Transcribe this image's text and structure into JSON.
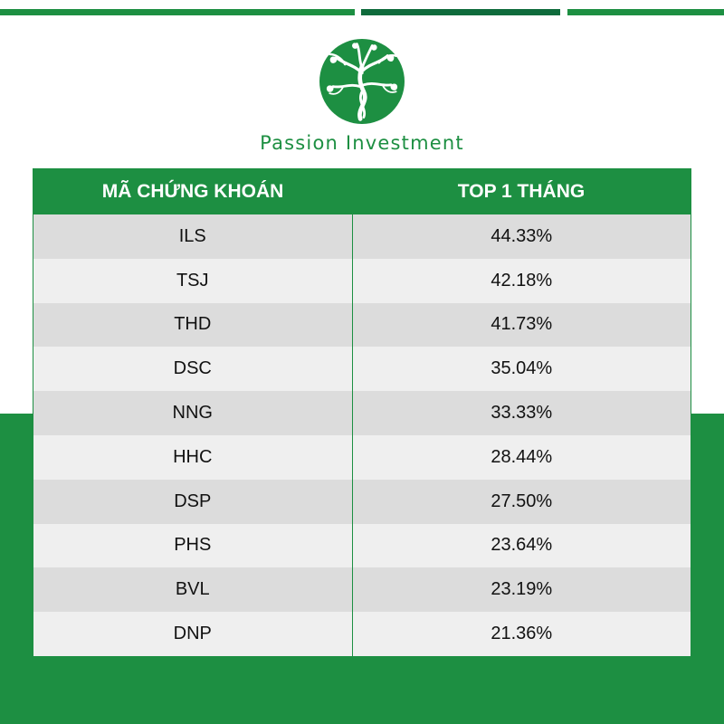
{
  "brand": {
    "name": "Passion Investment"
  },
  "colors": {
    "primary": "#1d8f42",
    "dark": "#0f6b3c"
  },
  "table": {
    "headers": [
      "MÃ CHỨNG KHOÁN",
      "TOP 1 THÁNG"
    ],
    "rows": [
      {
        "code": "ILS",
        "value": "44.33%"
      },
      {
        "code": "TSJ",
        "value": "42.18%"
      },
      {
        "code": "THD",
        "value": "41.73%"
      },
      {
        "code": "DSC",
        "value": "35.04%"
      },
      {
        "code": "NNG",
        "value": "33.33%"
      },
      {
        "code": "HHC",
        "value": "28.44%"
      },
      {
        "code": "DSP",
        "value": "27.50%"
      },
      {
        "code": "PHS",
        "value": "23.64%"
      },
      {
        "code": "BVL",
        "value": "23.19%"
      },
      {
        "code": "DNP",
        "value": "21.36%"
      }
    ]
  }
}
